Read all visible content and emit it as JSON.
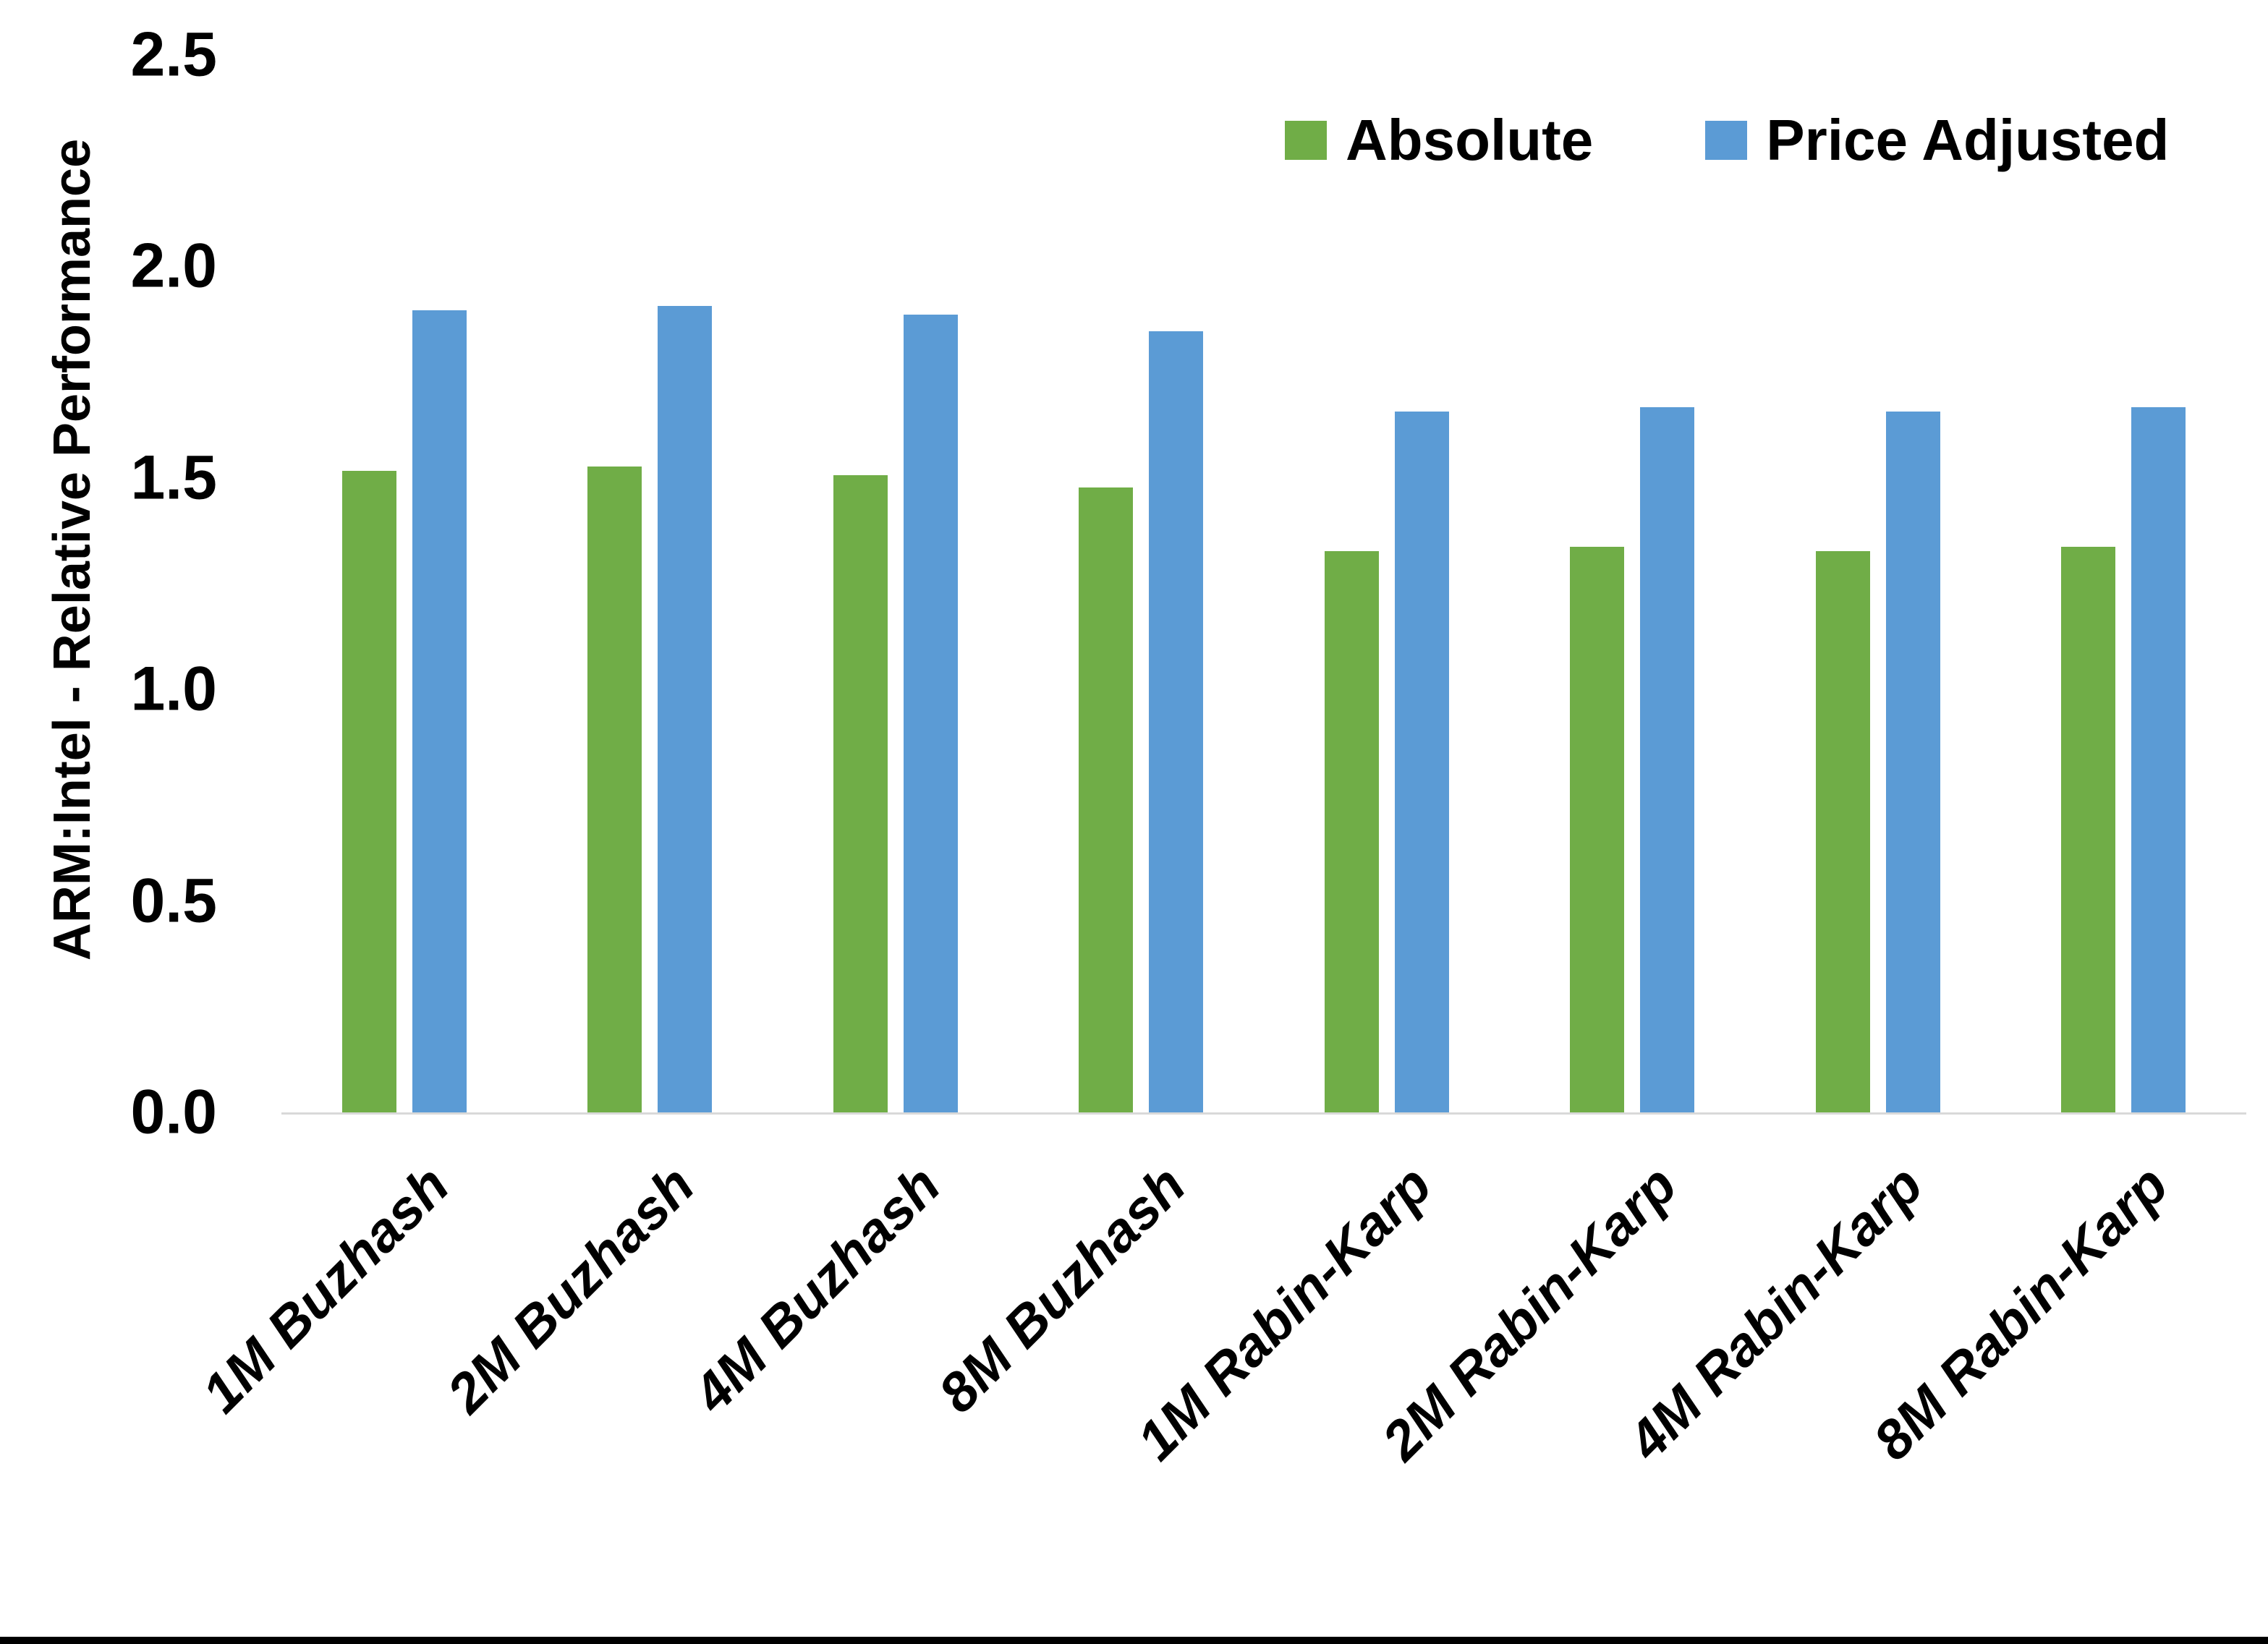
{
  "chart_data": {
    "type": "bar",
    "title": "",
    "xlabel": "",
    "ylabel": "ARM:Intel - Relative Performance",
    "categories": [
      "1M Buzhash",
      "2M Buzhash",
      "4M Buzhash",
      "8M Buzhash",
      "1M Rabin-Karp",
      "2M Rabin-Karp",
      "4M Rabin-Karp",
      "8M Rabin-Karp"
    ],
    "series": [
      {
        "name": "Absolute",
        "color": "#70AD47",
        "values": [
          1.52,
          1.53,
          1.51,
          1.48,
          1.33,
          1.34,
          1.33,
          1.34
        ]
      },
      {
        "name": "Price Adjusted",
        "color": "#5B9BD5",
        "values": [
          1.9,
          1.91,
          1.89,
          1.85,
          1.66,
          1.67,
          1.66,
          1.67
        ]
      }
    ],
    "ylim": [
      0.0,
      2.5
    ],
    "ytick_step": 0.5,
    "yticks": [
      "0.0",
      "0.5",
      "1.0",
      "1.5",
      "2.0",
      "2.5"
    ],
    "grid": false,
    "legend_position": "top-right",
    "x_label_rotation_deg": 45,
    "axis_line_color": "#D9D9D9",
    "text_color": "#000000",
    "page_bottom_border_color": "#000000"
  }
}
